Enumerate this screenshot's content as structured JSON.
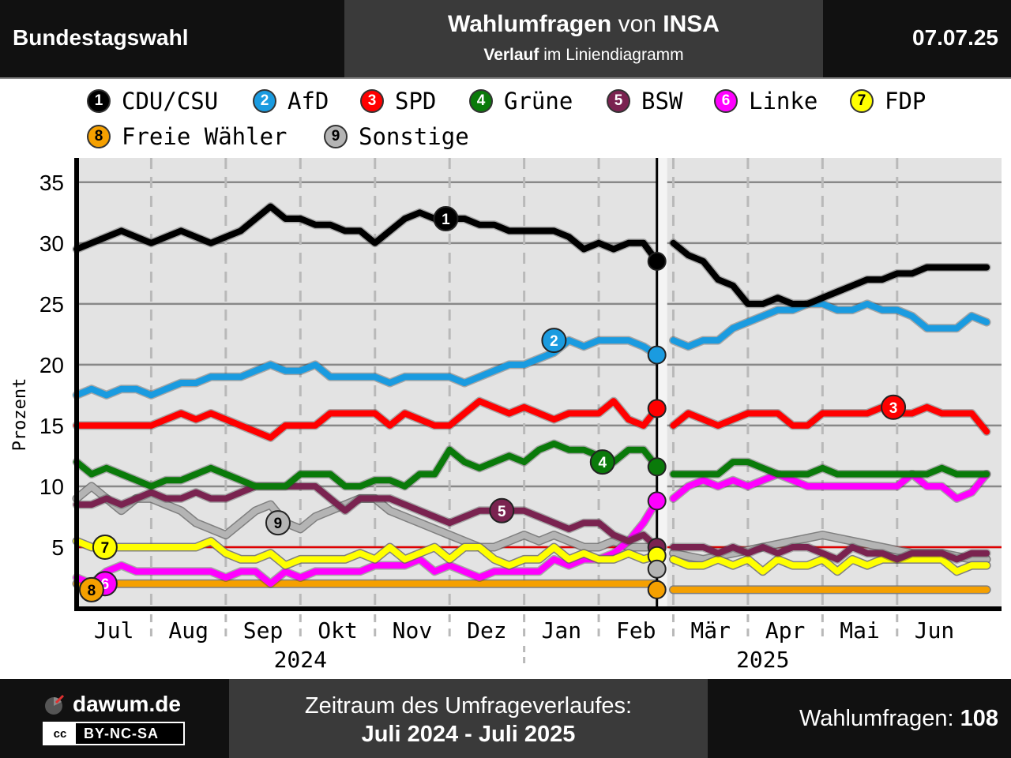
{
  "header": {
    "left_title": "Bundestagswahl",
    "mid_title_bold_1": "Wahlumfragen",
    "mid_title_normal": " von ",
    "mid_title_bold_2": "INSA",
    "mid_sub_bold": "Verlauf",
    "mid_sub_normal": " im Liniendiagramm",
    "date": "07.07.25"
  },
  "legend": {
    "items": [
      {
        "num": "1",
        "label": "CDU/CSU",
        "color": "#000000",
        "text_color": "#ffffff"
      },
      {
        "num": "2",
        "label": "AfD",
        "color": "#1a9be0",
        "text_color": "#ffffff"
      },
      {
        "num": "3",
        "label": "SPD",
        "color": "#ff0000",
        "text_color": "#ffffff"
      },
      {
        "num": "4",
        "label": "Grüne",
        "color": "#0a7a0a",
        "text_color": "#ffffff"
      },
      {
        "num": "5",
        "label": "BSW",
        "color": "#7a2350",
        "text_color": "#ffffff"
      },
      {
        "num": "6",
        "label": "Linke",
        "color": "#ff00ff",
        "text_color": "#ffffff"
      },
      {
        "num": "7",
        "label": "FDP",
        "color": "#ffff00",
        "text_color": "#000000"
      },
      {
        "num": "8",
        "label": "Freie Wähler",
        "color": "#f5a000",
        "text_color": "#000000"
      },
      {
        "num": "9",
        "label": "Sonstige",
        "color": "#b4b4b4",
        "text_color": "#000000"
      }
    ]
  },
  "chart_data": {
    "type": "line",
    "ylabel": "Prozent",
    "ylim": [
      0,
      37
    ],
    "yticks": [
      5,
      10,
      15,
      20,
      25,
      30,
      35
    ],
    "threshold": 5,
    "x_unit": "month",
    "xlim": [
      0,
      12.4
    ],
    "month_ticks": [
      {
        "label": "Jul",
        "pos": 0.5
      },
      {
        "label": "Aug",
        "pos": 1.5
      },
      {
        "label": "Sep",
        "pos": 2.5
      },
      {
        "label": "Okt",
        "pos": 3.5
      },
      {
        "label": "Nov",
        "pos": 4.5
      },
      {
        "label": "Dez",
        "pos": 5.5
      },
      {
        "label": "Jan",
        "pos": 6.5
      },
      {
        "label": "Feb",
        "pos": 7.5
      },
      {
        "label": "Mär",
        "pos": 8.5
      },
      {
        "label": "Apr",
        "pos": 9.5
      },
      {
        "label": "Mai",
        "pos": 10.5
      },
      {
        "label": "Jun",
        "pos": 11.5
      }
    ],
    "years": [
      {
        "label": "2024",
        "pos": 3.0
      },
      {
        "label": "2025",
        "pos": 9.2
      }
    ],
    "election": {
      "x": 7.78
    },
    "election_results": [
      {
        "num": "1",
        "value": 28.5
      },
      {
        "num": "2",
        "value": 20.8
      },
      {
        "num": "3",
        "value": 16.4
      },
      {
        "num": "4",
        "value": 11.6
      },
      {
        "num": "6",
        "value": 8.8
      },
      {
        "num": "5",
        "value": 5.0
      },
      {
        "num": "7",
        "value": 4.3
      },
      {
        "num": "9",
        "value": 3.2
      },
      {
        "num": "8",
        "value": 1.5
      }
    ],
    "series": [
      {
        "num": "9",
        "name": "Sonstige",
        "color": "#b4b4b4",
        "x": [
          0,
          0.2,
          0.4,
          0.6,
          0.8,
          1,
          1.2,
          1.4,
          1.6,
          1.8,
          2,
          2.2,
          2.4,
          2.6,
          2.8,
          3,
          3.2,
          3.4,
          3.6,
          3.8,
          4,
          4.2,
          4.4,
          4.6,
          4.8,
          5,
          5.2,
          5.4,
          5.6,
          5.8,
          6,
          6.2,
          6.4,
          6.6,
          6.8,
          7,
          7.2,
          7.4,
          7.6,
          7.78,
          8.0,
          8.4,
          8.8,
          9.2,
          9.6,
          10,
          10.4,
          10.8,
          11.2,
          11.6,
          12,
          12.2
        ],
        "y": [
          9,
          10,
          9,
          8,
          9,
          9,
          8.5,
          8,
          7,
          6.5,
          6,
          7,
          8,
          8.5,
          7,
          6.5,
          7.5,
          8,
          8.5,
          9,
          9,
          8,
          7.5,
          7,
          6.5,
          6,
          5.5,
          5,
          5,
          5.5,
          6,
          5.5,
          6,
          5.5,
          5,
          5,
          5.5,
          5,
          5,
          5,
          4.5,
          4,
          4.5,
          5,
          5.5,
          6,
          5.5,
          5,
          4.5,
          4.5,
          4,
          4
        ]
      },
      {
        "num": "8",
        "name": "Freie Wähler",
        "color": "#f5a000",
        "x": [
          0,
          7.78,
          8.0,
          12.2
        ],
        "y": [
          2,
          2,
          1.5,
          1.5
        ]
      },
      {
        "num": "6",
        "name": "Linke",
        "color": "#ff00ff",
        "x": [
          0,
          0.2,
          0.4,
          0.6,
          0.8,
          1,
          1.2,
          1.4,
          1.6,
          1.8,
          2,
          2.2,
          2.4,
          2.6,
          2.8,
          3,
          3.2,
          3.4,
          3.6,
          3.8,
          4,
          4.2,
          4.4,
          4.6,
          4.8,
          5,
          5.2,
          5.4,
          5.6,
          5.8,
          6,
          6.2,
          6.4,
          6.6,
          6.8,
          7,
          7.2,
          7.4,
          7.6,
          7.78,
          8.0,
          8.2,
          8.4,
          8.6,
          8.8,
          9,
          9.2,
          9.4,
          9.6,
          9.8,
          10,
          10.2,
          10.4,
          10.6,
          10.8,
          11,
          11.2,
          11.4,
          11.6,
          11.8,
          12,
          12.2
        ],
        "y": [
          2.5,
          2,
          3,
          3.5,
          3,
          3,
          3,
          3,
          3,
          3,
          2.5,
          3,
          3,
          2,
          3,
          2.5,
          3,
          3,
          3,
          3,
          3.5,
          3.5,
          3.5,
          4,
          3,
          3.5,
          3,
          2.5,
          3,
          3,
          3,
          3,
          4,
          3.5,
          4,
          4,
          4.5,
          5.5,
          7,
          8.8,
          9,
          10,
          10.5,
          10,
          10.5,
          10,
          10.5,
          11,
          10.5,
          10,
          10,
          10,
          10,
          10,
          10,
          10,
          11,
          10,
          10,
          9,
          9.5,
          11
        ]
      },
      {
        "num": "7",
        "name": "FDP",
        "color": "#ffff00",
        "x": [
          0,
          0.2,
          0.4,
          0.6,
          0.8,
          1,
          1.2,
          1.4,
          1.6,
          1.8,
          2,
          2.2,
          2.4,
          2.6,
          2.8,
          3,
          3.2,
          3.4,
          3.6,
          3.8,
          4,
          4.2,
          4.4,
          4.6,
          4.8,
          5,
          5.2,
          5.4,
          5.6,
          5.8,
          6,
          6.2,
          6.4,
          6.6,
          6.8,
          7,
          7.2,
          7.4,
          7.6,
          7.78,
          8.0,
          8.2,
          8.4,
          8.6,
          8.8,
          9,
          9.2,
          9.4,
          9.6,
          9.8,
          10,
          10.2,
          10.4,
          10.6,
          10.8,
          11,
          11.2,
          11.4,
          11.6,
          11.8,
          12,
          12.2
        ],
        "y": [
          5.5,
          5,
          5,
          5,
          5,
          5,
          5,
          5,
          5,
          5.5,
          4.5,
          4,
          4,
          4.5,
          3.5,
          4,
          4,
          4,
          4,
          4.5,
          4,
          5,
          4,
          4.5,
          5,
          4,
          5,
          5,
          4,
          3.5,
          4,
          4,
          5,
          4,
          4.5,
          4,
          4,
          4.5,
          4,
          4.3,
          4,
          3.5,
          3.5,
          4,
          3.5,
          4,
          3,
          4,
          3.5,
          3.5,
          4,
          3,
          4,
          3.5,
          4,
          4,
          4,
          4,
          4,
          3,
          3.5,
          3.5
        ]
      },
      {
        "num": "5",
        "name": "BSW",
        "color": "#7a2350",
        "x": [
          0,
          0.2,
          0.4,
          0.6,
          0.8,
          1,
          1.2,
          1.4,
          1.6,
          1.8,
          2,
          2.2,
          2.4,
          2.6,
          2.8,
          3,
          3.2,
          3.4,
          3.6,
          3.8,
          4,
          4.2,
          4.4,
          4.6,
          4.8,
          5,
          5.2,
          5.4,
          5.6,
          5.8,
          6,
          6.2,
          6.4,
          6.6,
          6.8,
          7,
          7.2,
          7.4,
          7.6,
          7.78,
          8.0,
          8.2,
          8.4,
          8.6,
          8.8,
          9,
          9.2,
          9.4,
          9.6,
          9.8,
          10,
          10.2,
          10.4,
          10.6,
          10.8,
          11,
          11.2,
          11.4,
          11.6,
          11.8,
          12,
          12.2
        ],
        "y": [
          8.5,
          8.5,
          9,
          8.5,
          9,
          9.5,
          9,
          9,
          9.5,
          9,
          9,
          9.5,
          10,
          10,
          10,
          10,
          10,
          9,
          8,
          9,
          9,
          9,
          8.5,
          8,
          7.5,
          7,
          7.5,
          8,
          8,
          8,
          8,
          7.5,
          7,
          6.5,
          7,
          7,
          6,
          5.5,
          6,
          5,
          5,
          5,
          5,
          4.5,
          5,
          4.5,
          5,
          4.5,
          5,
          5,
          4.5,
          4,
          5,
          4.5,
          4.5,
          4,
          4.5,
          4.5,
          4.5,
          4,
          4.5,
          4.5
        ]
      },
      {
        "num": "4",
        "name": "Grüne",
        "color": "#0a7a0a",
        "x": [
          0,
          0.2,
          0.4,
          0.6,
          0.8,
          1,
          1.2,
          1.4,
          1.6,
          1.8,
          2,
          2.2,
          2.4,
          2.6,
          2.8,
          3,
          3.2,
          3.4,
          3.6,
          3.8,
          4,
          4.2,
          4.4,
          4.6,
          4.8,
          5,
          5.2,
          5.4,
          5.6,
          5.8,
          6,
          6.2,
          6.4,
          6.6,
          6.8,
          7,
          7.2,
          7.4,
          7.6,
          7.78,
          8.0,
          8.2,
          8.4,
          8.6,
          8.8,
          9,
          9.2,
          9.4,
          9.6,
          9.8,
          10,
          10.2,
          10.4,
          10.6,
          10.8,
          11,
          11.2,
          11.4,
          11.6,
          11.8,
          12,
          12.2
        ],
        "y": [
          12,
          11,
          11.5,
          11,
          10.5,
          10,
          10.5,
          10.5,
          11,
          11.5,
          11,
          10.5,
          10,
          10,
          10,
          11,
          11,
          11,
          10,
          10,
          10.5,
          10.5,
          10,
          11,
          11,
          13,
          12,
          11.5,
          12,
          12.5,
          12,
          13,
          13.5,
          13,
          13,
          12.5,
          12,
          13,
          13,
          11.6,
          11,
          11,
          11,
          11,
          12,
          12,
          11.5,
          11,
          11,
          11,
          11.5,
          11,
          11,
          11,
          11,
          11,
          11,
          11,
          11.5,
          11,
          11,
          11
        ]
      },
      {
        "num": "3",
        "name": "SPD",
        "color": "#ff0000",
        "x": [
          0,
          0.2,
          0.4,
          0.6,
          0.8,
          1,
          1.2,
          1.4,
          1.6,
          1.8,
          2,
          2.2,
          2.4,
          2.6,
          2.8,
          3,
          3.2,
          3.4,
          3.6,
          3.8,
          4,
          4.2,
          4.4,
          4.6,
          4.8,
          5,
          5.2,
          5.4,
          5.6,
          5.8,
          6,
          6.2,
          6.4,
          6.6,
          6.8,
          7,
          7.2,
          7.4,
          7.6,
          7.78,
          8.0,
          8.2,
          8.4,
          8.6,
          8.8,
          9,
          9.2,
          9.4,
          9.6,
          9.8,
          10,
          10.2,
          10.4,
          10.6,
          10.8,
          11,
          11.2,
          11.4,
          11.6,
          11.8,
          12,
          12.2
        ],
        "y": [
          15,
          15,
          15,
          15,
          15,
          15,
          15.5,
          16,
          15.5,
          16,
          15.5,
          15,
          14.5,
          14,
          15,
          15,
          15,
          16,
          16,
          16,
          16,
          15,
          16,
          15.5,
          15,
          15,
          16,
          17,
          16.5,
          16,
          16.5,
          16,
          15.5,
          16,
          16,
          16,
          17,
          15.5,
          15,
          16.4,
          15,
          16,
          15.5,
          15,
          15.5,
          16,
          16,
          16,
          15,
          15,
          16,
          16,
          16,
          16,
          16.5,
          16,
          16,
          16.5,
          16,
          16,
          16,
          14.5
        ]
      },
      {
        "num": "2",
        "name": "AfD",
        "color": "#1a9be0",
        "x": [
          0,
          0.2,
          0.4,
          0.6,
          0.8,
          1,
          1.2,
          1.4,
          1.6,
          1.8,
          2,
          2.2,
          2.4,
          2.6,
          2.8,
          3,
          3.2,
          3.4,
          3.6,
          3.8,
          4,
          4.2,
          4.4,
          4.6,
          4.8,
          5,
          5.2,
          5.4,
          5.6,
          5.8,
          6,
          6.2,
          6.4,
          6.6,
          6.8,
          7,
          7.2,
          7.4,
          7.6,
          7.78,
          8.0,
          8.2,
          8.4,
          8.6,
          8.8,
          9,
          9.2,
          9.4,
          9.6,
          9.8,
          10,
          10.2,
          10.4,
          10.6,
          10.8,
          11,
          11.2,
          11.4,
          11.6,
          11.8,
          12,
          12.2
        ],
        "y": [
          17.5,
          18,
          17.5,
          18,
          18,
          17.5,
          18,
          18.5,
          18.5,
          19,
          19,
          19,
          19.5,
          20,
          19.5,
          19.5,
          20,
          19,
          19,
          19,
          19,
          18.5,
          19,
          19,
          19,
          19,
          18.5,
          19,
          19.5,
          20,
          20,
          20.5,
          21,
          22,
          21.5,
          22,
          22,
          22,
          21.5,
          20.8,
          22,
          21.5,
          22,
          22,
          23,
          23.5,
          24,
          24.5,
          24.5,
          25,
          25,
          24.5,
          24.5,
          25,
          24.5,
          24.5,
          24,
          23,
          23,
          23,
          24,
          23.5
        ]
      },
      {
        "num": "1",
        "name": "CDU/CSU",
        "color": "#000000",
        "x": [
          0,
          0.2,
          0.4,
          0.6,
          0.8,
          1,
          1.2,
          1.4,
          1.6,
          1.8,
          2,
          2.2,
          2.4,
          2.6,
          2.8,
          3,
          3.2,
          3.4,
          3.6,
          3.8,
          4,
          4.2,
          4.4,
          4.6,
          4.8,
          5,
          5.2,
          5.4,
          5.6,
          5.8,
          6,
          6.2,
          6.4,
          6.6,
          6.8,
          7,
          7.2,
          7.4,
          7.6,
          7.78,
          8.0,
          8.2,
          8.4,
          8.6,
          8.8,
          9,
          9.2,
          9.4,
          9.6,
          9.8,
          10,
          10.2,
          10.4,
          10.6,
          10.8,
          11,
          11.2,
          11.4,
          11.6,
          11.8,
          12,
          12.2
        ],
        "y": [
          29.5,
          30,
          30.5,
          31,
          30.5,
          30,
          30.5,
          31,
          30.5,
          30,
          30.5,
          31,
          32,
          33,
          32,
          32,
          31.5,
          31.5,
          31,
          31,
          30,
          31,
          32,
          32.5,
          32,
          32,
          32,
          31.5,
          31.5,
          31,
          31,
          31,
          31,
          30.5,
          29.5,
          30,
          29.5,
          30,
          30,
          28.5,
          30,
          29,
          28.5,
          27,
          26.5,
          25,
          25,
          25.5,
          25,
          25,
          25.5,
          26,
          26.5,
          27,
          27,
          27.5,
          27.5,
          28,
          28,
          28,
          28,
          28
        ]
      }
    ],
    "labels": [
      {
        "num": "1",
        "x": 4.95,
        "y": 32
      },
      {
        "num": "2",
        "x": 6.4,
        "y": 22
      },
      {
        "num": "3",
        "x": 10.95,
        "y": 16.5
      },
      {
        "num": "4",
        "x": 7.05,
        "y": 12
      },
      {
        "num": "5",
        "x": 5.7,
        "y": 8
      },
      {
        "num": "9",
        "x": 2.7,
        "y": 7
      },
      {
        "num": "7",
        "x": 0.38,
        "y": 5
      },
      {
        "num": "6",
        "x": 0.38,
        "y": 2
      },
      {
        "num": "8",
        "x": 0.2,
        "y": 1.5
      }
    ]
  },
  "footer": {
    "brand": "dawum.de",
    "license_icon": "cc",
    "license": "BY-NC-SA",
    "period_label": "Zeitraum des Umfrageverlaufes:",
    "period_value": "Juli 2024 - Juli 2025",
    "count_label": "Wahlumfragen: ",
    "count_value": "108"
  }
}
